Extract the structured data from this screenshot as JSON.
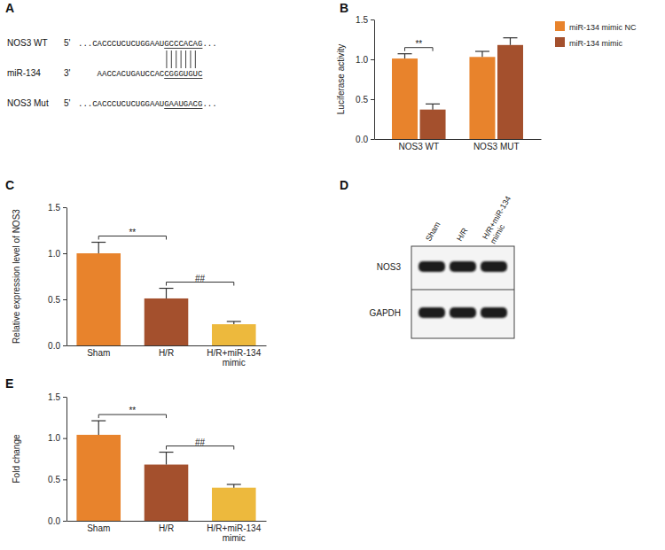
{
  "diagram": {
    "title": "A",
    "rows": [
      {
        "label": "NOS3 WT",
        "prime": "5'",
        "sequence": "...CACCCUCUCUGGAAUGCCCACAG..."
      },
      {
        "label": "miR-134",
        "prime": "3'",
        "sequence": "AACCACUGAUCCACCGGGUGUC"
      },
      {
        "label": "NOS3 Mut",
        "prime": "5'",
        "sequence": "...CACCCUCUCUGGAAUGAAUGACG..."
      }
    ]
  },
  "chart_data": [
    {
      "type": "bar",
      "title": "B",
      "ylabel": "Luciferase activity",
      "categories": [
        "NOS3 WT",
        "NOS3 MUT"
      ],
      "series": [
        {
          "name": "miR-134 mimic NC",
          "color": "#E8832C",
          "values": [
            1.01,
            1.03
          ],
          "errors": [
            0.06,
            0.07
          ]
        },
        {
          "name": "miR-134 mimic",
          "color": "#A4502D",
          "values": [
            0.37,
            1.18
          ],
          "errors": [
            0.07,
            0.09
          ]
        }
      ],
      "ylim": [
        0,
        1.5
      ],
      "yticks": [
        {
          "value": 0,
          "label": "0.0"
        },
        0.5,
        {
          "value": 1,
          "label": "1.0"
        },
        1.5
      ],
      "legend": "right",
      "annotations": [
        {
          "text": "**",
          "category": 0,
          "series": [
            0,
            1
          ]
        }
      ]
    },
    {
      "type": "bar",
      "title": "C",
      "ylabel": "Relative expression level of NOS3",
      "categories": [
        "Sham",
        "H/R",
        "H/R+miR-134 mimic"
      ],
      "values": [
        1.0,
        0.51,
        0.23
      ],
      "errors": [
        0.12,
        0.11,
        0.03
      ],
      "colors": [
        "#E8832C",
        "#A4502D",
        "#EDB93D"
      ],
      "ylim": [
        0,
        1.5
      ],
      "yticks": [
        {
          "value": 0,
          "label": "0.0"
        },
        0.5,
        {
          "value": 1,
          "label": "1.0"
        },
        1.5
      ],
      "annotations": [
        {
          "text": "**",
          "categories": [
            0,
            1
          ]
        },
        {
          "text": "##",
          "categories": [
            1,
            2
          ]
        }
      ]
    },
    {
      "type": "bar",
      "title": "E",
      "ylabel": "Fold change",
      "categories": [
        "Sham",
        "H/R",
        "H/R+miR-134 mimic"
      ],
      "values": [
        1.04,
        0.68,
        0.4
      ],
      "errors": [
        0.17,
        0.15,
        0.04
      ],
      "colors": [
        "#E8832C",
        "#A4502D",
        "#EDB93D"
      ],
      "ylim": [
        0,
        1.5
      ],
      "yticks": [
        {
          "value": 0,
          "label": "0.0"
        },
        0.5,
        {
          "value": 1,
          "label": "1.0"
        },
        1.5
      ],
      "annotations": [
        {
          "text": "**",
          "categories": [
            0,
            1
          ]
        },
        {
          "text": "##",
          "categories": [
            1,
            2
          ]
        }
      ]
    }
  ],
  "blot": {
    "title": "D",
    "lanes": [
      "Sham",
      "H/R",
      "H/R+miR-134 mimic"
    ],
    "rows": [
      "NOS3",
      "GAPDH"
    ]
  }
}
